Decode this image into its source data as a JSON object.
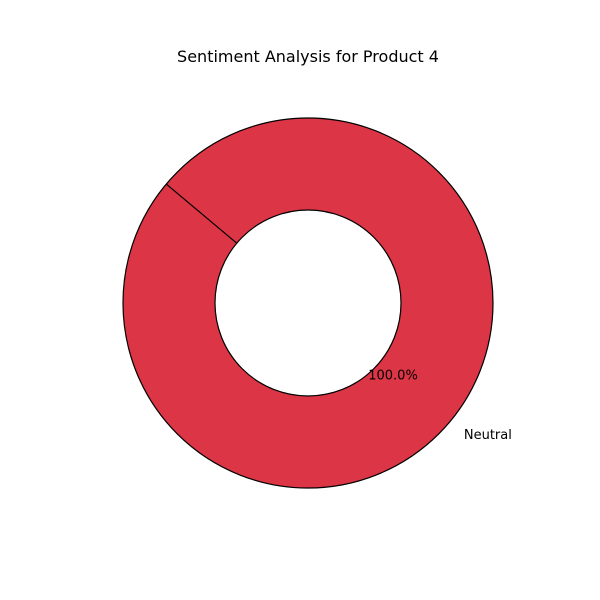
{
  "chart_data": {
    "type": "pie",
    "title": "Sentiment Analysis for Product 4",
    "donut": true,
    "categories": [
      "Neutral"
    ],
    "values": [
      100.0
    ],
    "percent_labels": [
      "100.0%"
    ],
    "colors": [
      "#dc3545"
    ],
    "edge_color": "#000000",
    "legend": false
  }
}
